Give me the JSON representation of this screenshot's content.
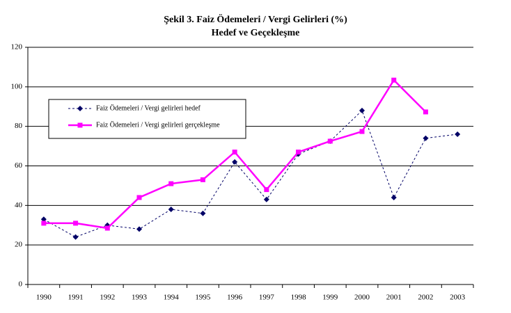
{
  "chart_data": {
    "type": "line",
    "title": "Şekil 3. Faiz Ödemeleri / Vergi Gelirleri (%)",
    "subtitle": "Hedef ve Geçekleşme",
    "categories": [
      "1990",
      "1991",
      "1992",
      "1993",
      "1994",
      "1995",
      "1996",
      "1997",
      "1998",
      "1999",
      "2000",
      "2001",
      "2002",
      "2003"
    ],
    "series": [
      {
        "name": "Faiz Ödemeleri / Vergi gelirleri hedef",
        "color": "#000066",
        "line_style": "dashed",
        "marker": "diamond",
        "values": [
          33,
          24,
          30,
          28,
          38,
          36,
          62,
          43,
          66,
          72.5,
          88,
          44,
          74,
          76
        ]
      },
      {
        "name": "Faiz Ödemeleri / Vergi gelirleri gerçekleşme",
        "color": "#ff00ff",
        "line_style": "solid",
        "marker": "square",
        "values": [
          31,
          31,
          28.5,
          44,
          51,
          53,
          67,
          48,
          67,
          72.5,
          77.4,
          103.4,
          87.3,
          null
        ]
      }
    ],
    "ylim": [
      0,
      120
    ],
    "yticks": [
      0,
      20,
      40,
      60,
      80,
      100,
      120
    ],
    "grid": true,
    "legend": "upper-left"
  }
}
